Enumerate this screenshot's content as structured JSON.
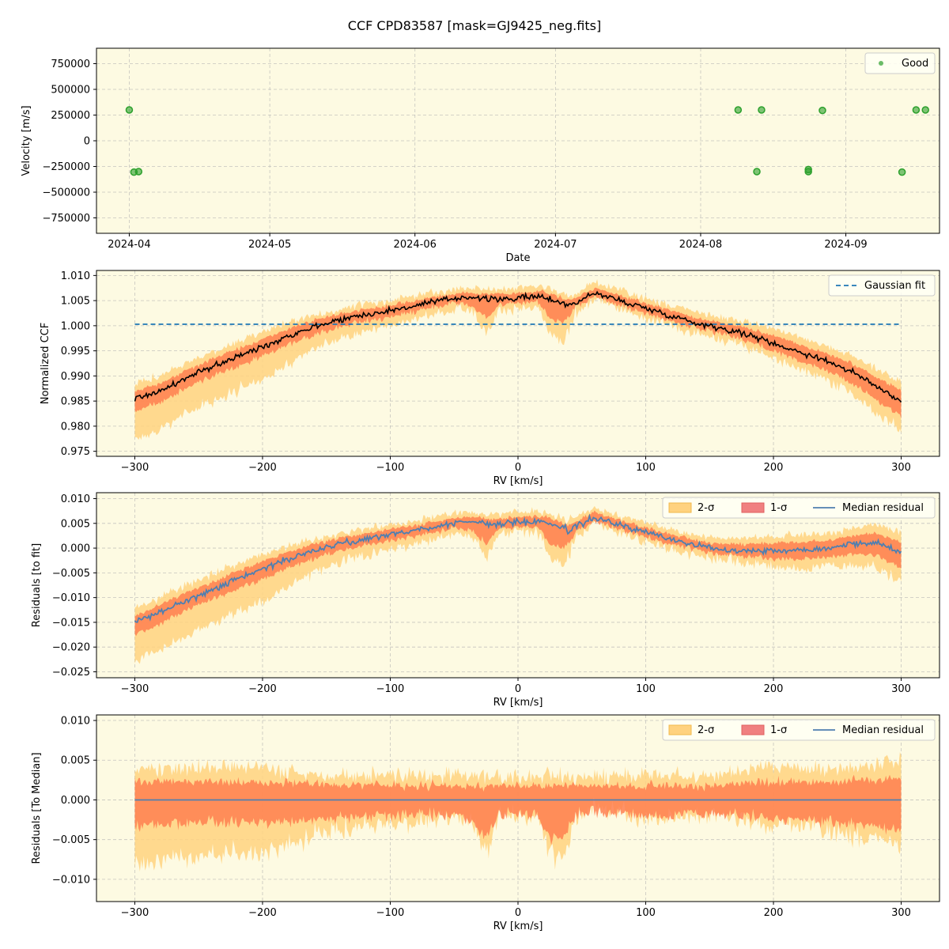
{
  "figure_title": "CCF CPD83587 [mask=GJ9425_neg.fits]",
  "colors": {
    "background": "#fdfae2",
    "good": "#2ca02c",
    "fit": "#1f77b4",
    "ccf_line": "#000000",
    "two_sigma": "#ffd27f",
    "one_sigma": "#ff7f50",
    "one_sigma_legend": "#f08080",
    "median": "#4f7fb0"
  },
  "chart_data": [
    {
      "type": "scatter",
      "xlabel": "Date",
      "ylabel": "Velocity [m/s]",
      "xlim": [
        "2024-03-25",
        "2024-09-21"
      ],
      "ylim": [
        -900000,
        900000
      ],
      "x_ticks": [
        "2024-04",
        "2024-05",
        "2024-06",
        "2024-07",
        "2024-08",
        "2024-09"
      ],
      "x_tick_dates": [
        "2024-04-01",
        "2024-05-01",
        "2024-06-01",
        "2024-07-01",
        "2024-08-01",
        "2024-09-01"
      ],
      "y_ticks": [
        750000,
        500000,
        250000,
        0,
        -250000,
        -500000,
        -750000
      ],
      "y_tick_labels": [
        "750000",
        "500000",
        "250000",
        "0",
        "−250000",
        "−500000",
        "−750000"
      ],
      "legend": {
        "position": "upper right",
        "entries": [
          "Good"
        ]
      },
      "grid": true,
      "series": [
        {
          "name": "Good",
          "points": [
            [
              "2024-04-01",
              300000
            ],
            [
              "2024-04-02",
              -305000
            ],
            [
              "2024-04-03",
              -300000
            ],
            [
              "2024-08-09",
              300000
            ],
            [
              "2024-08-13",
              -300000
            ],
            [
              "2024-08-14",
              300000
            ],
            [
              "2024-08-24",
              -300000
            ],
            [
              "2024-08-24",
              -280000
            ],
            [
              "2024-08-27",
              295000
            ],
            [
              "2024-09-13",
              -305000
            ],
            [
              "2024-09-16",
              300000
            ],
            [
              "2024-09-18",
              300000
            ]
          ]
        }
      ]
    },
    {
      "type": "line",
      "xlabel": "RV [km/s]",
      "ylabel": "Normalized CCF",
      "xlim": [
        -330,
        330
      ],
      "ylim": [
        0.974,
        1.011
      ],
      "x_ticks": [
        -300,
        -200,
        -100,
        0,
        100,
        200,
        300
      ],
      "x_tick_labels": [
        "−300",
        "−200",
        "−100",
        "0",
        "100",
        "200",
        "300"
      ],
      "y_ticks": [
        0.975,
        0.98,
        0.985,
        0.99,
        0.995,
        1.0,
        1.005,
        1.01
      ],
      "y_tick_labels": [
        "0.975",
        "0.980",
        "0.985",
        "0.990",
        "0.995",
        "1.000",
        "1.005",
        "1.010"
      ],
      "legend": {
        "position": "upper right",
        "entries": [
          "Gaussian fit"
        ]
      },
      "grid": true,
      "gaussian_fit": {
        "name": "Gaussian fit",
        "x": [
          -300,
          300
        ],
        "y": [
          1.0003,
          1.0003
        ]
      },
      "median_ccf": {
        "x": [
          -300,
          -280,
          -260,
          -240,
          -220,
          -200,
          -180,
          -160,
          -140,
          -120,
          -100,
          -80,
          -60,
          -40,
          -20,
          0,
          20,
          40,
          60,
          80,
          100,
          120,
          140,
          160,
          180,
          200,
          220,
          240,
          260,
          280,
          300
        ],
        "y": [
          0.9855,
          0.987,
          0.9895,
          0.9918,
          0.9938,
          0.9958,
          0.998,
          0.9998,
          1.0012,
          1.0022,
          1.003,
          1.004,
          1.005,
          1.0058,
          1.0052,
          1.0055,
          1.0058,
          1.004,
          1.0065,
          1.005,
          1.0035,
          1.002,
          1.0005,
          0.9995,
          0.9982,
          0.9965,
          0.9948,
          0.9932,
          0.991,
          0.988,
          0.985
        ]
      },
      "band_shape": {
        "x": [
          -300,
          -250,
          -200,
          -150,
          -100,
          -50,
          -35,
          -25,
          -15,
          0,
          15,
          25,
          35,
          45,
          60,
          100,
          150,
          200,
          250,
          300
        ],
        "two_sigma_lower_offset": [
          -0.008,
          -0.007,
          -0.0065,
          -0.004,
          -0.003,
          -0.002,
          -0.003,
          -0.007,
          -0.002,
          -0.002,
          -0.002,
          -0.007,
          -0.008,
          -0.002,
          -0.001,
          -0.002,
          -0.002,
          -0.003,
          -0.004,
          -0.006
        ],
        "two_sigma_upper_offset": [
          0.003,
          0.003,
          0.003,
          0.002,
          0.002,
          0.002,
          0.002,
          0.002,
          0.002,
          0.002,
          0.002,
          0.002,
          0.002,
          0.002,
          0.002,
          0.002,
          0.002,
          0.003,
          0.003,
          0.004
        ],
        "one_sigma_lower_offset": [
          -0.0025,
          -0.002,
          -0.002,
          -0.0015,
          -0.0012,
          -0.001,
          -0.002,
          -0.004,
          -0.001,
          -0.001,
          -0.001,
          -0.004,
          -0.004,
          -0.001,
          -0.0008,
          -0.001,
          -0.001,
          -0.0015,
          -0.002,
          -0.003
        ],
        "one_sigma_upper_offset": [
          0.0015,
          0.0015,
          0.0015,
          0.0012,
          0.001,
          0.001,
          0.001,
          0.001,
          0.001,
          0.001,
          0.001,
          0.001,
          0.001,
          0.001,
          0.001,
          0.001,
          0.001,
          0.0015,
          0.0015,
          0.002
        ]
      }
    },
    {
      "type": "area",
      "xlabel": "RV [km/s]",
      "ylabel": "Residuals [to fit]",
      "xlim": [
        -330,
        330
      ],
      "ylim": [
        -0.0262,
        0.0112
      ],
      "x_ticks": [
        -300,
        -200,
        -100,
        0,
        100,
        200,
        300
      ],
      "x_tick_labels": [
        "−300",
        "−200",
        "−100",
        "0",
        "100",
        "200",
        "300"
      ],
      "y_ticks": [
        0.01,
        0.005,
        0.0,
        -0.005,
        -0.01,
        -0.015,
        -0.02,
        -0.025
      ],
      "y_tick_labels": [
        "0.010",
        "0.005",
        "0.000",
        "−0.005",
        "−0.010",
        "−0.015",
        "−0.020",
        "−0.025"
      ],
      "legend": {
        "position": "upper right",
        "entries": [
          "2-σ",
          "1-σ",
          "Median residual"
        ]
      },
      "grid": true,
      "median_residual": {
        "x": [
          -300,
          -280,
          -260,
          -240,
          -220,
          -200,
          -180,
          -160,
          -140,
          -120,
          -100,
          -80,
          -60,
          -40,
          -20,
          0,
          20,
          40,
          60,
          80,
          100,
          120,
          140,
          160,
          180,
          200,
          220,
          240,
          260,
          280,
          300
        ],
        "y": [
          -0.015,
          -0.013,
          -0.0105,
          -0.0085,
          -0.0062,
          -0.0042,
          -0.0022,
          -0.0005,
          0.0008,
          0.0018,
          0.0028,
          0.0036,
          0.0046,
          0.0054,
          0.0048,
          0.0052,
          0.0054,
          0.0036,
          0.0062,
          0.0046,
          0.0032,
          0.0018,
          0.0005,
          -0.0002,
          -0.0005,
          -0.0005,
          -0.0004,
          0.0,
          0.0008,
          0.0012,
          -0.001
        ]
      }
    },
    {
      "type": "area",
      "xlabel": "RV [km/s]",
      "ylabel": "Residuals [To Median]",
      "xlim": [
        -330,
        330
      ],
      "ylim": [
        -0.0128,
        0.0107
      ],
      "x_ticks": [
        -300,
        -200,
        -100,
        0,
        100,
        200,
        300
      ],
      "x_tick_labels": [
        "−300",
        "−200",
        "−100",
        "0",
        "100",
        "200",
        "300"
      ],
      "y_ticks": [
        0.01,
        0.005,
        0.0,
        -0.005,
        -0.01
      ],
      "y_tick_labels": [
        "0.010",
        "0.005",
        "0.000",
        "−0.005",
        "−0.010"
      ],
      "legend": {
        "position": "upper right",
        "entries": [
          "2-σ",
          "1-σ",
          "Median residual"
        ]
      },
      "grid": true,
      "median_residual": {
        "x": [
          -300,
          300
        ],
        "y": [
          0,
          0
        ]
      }
    }
  ]
}
